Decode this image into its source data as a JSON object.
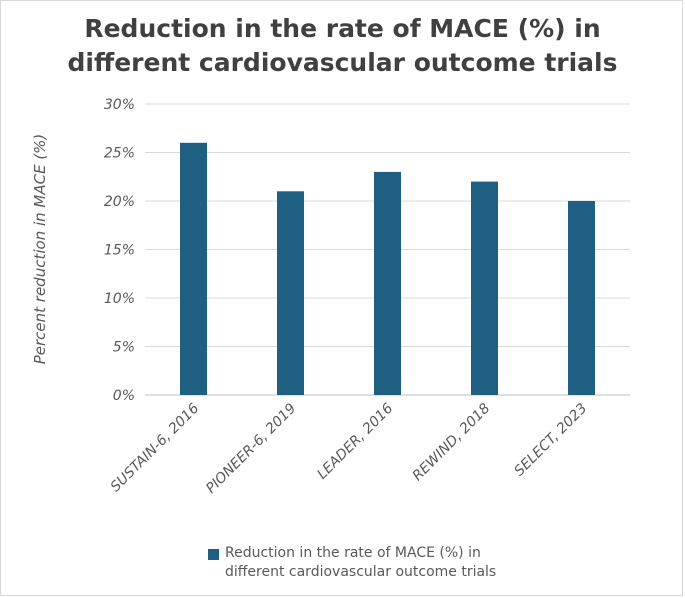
{
  "chart_data": {
    "type": "bar",
    "title_lines": [
      "Reduction in the rate of MACE (%) in",
      "different cardiovascular outcome trials"
    ],
    "xlabel": "",
    "ylabel": "Percent reduction in MACE (%)",
    "ylim": [
      0,
      30
    ],
    "yticks": [
      0,
      5,
      10,
      15,
      20,
      25,
      30
    ],
    "ytick_labels": [
      "0%",
      "5%",
      "10%",
      "15%",
      "20%",
      "25%",
      "30%"
    ],
    "categories": [
      "SUSTAIN-6, 2016",
      "PIONEER-6, 2019",
      "LEADER, 2016",
      "REWIND, 2018",
      "SELECT, 2023"
    ],
    "series": [
      {
        "name": "Reduction in the rate of MACE (%) in different cardiovascular outcome trials",
        "values": [
          26,
          21,
          23,
          22,
          20
        ],
        "color": "#1f5f82"
      }
    ],
    "legend_lines": [
      "Reduction in the rate of MACE (%) in",
      "different cardiovascular outcome trials"
    ],
    "legend_position": "bottom",
    "grid": true
  },
  "colors": {
    "bar": "#1f5f82",
    "gridline": "#d9d9d9",
    "text": "#595959",
    "title": "#404040"
  }
}
